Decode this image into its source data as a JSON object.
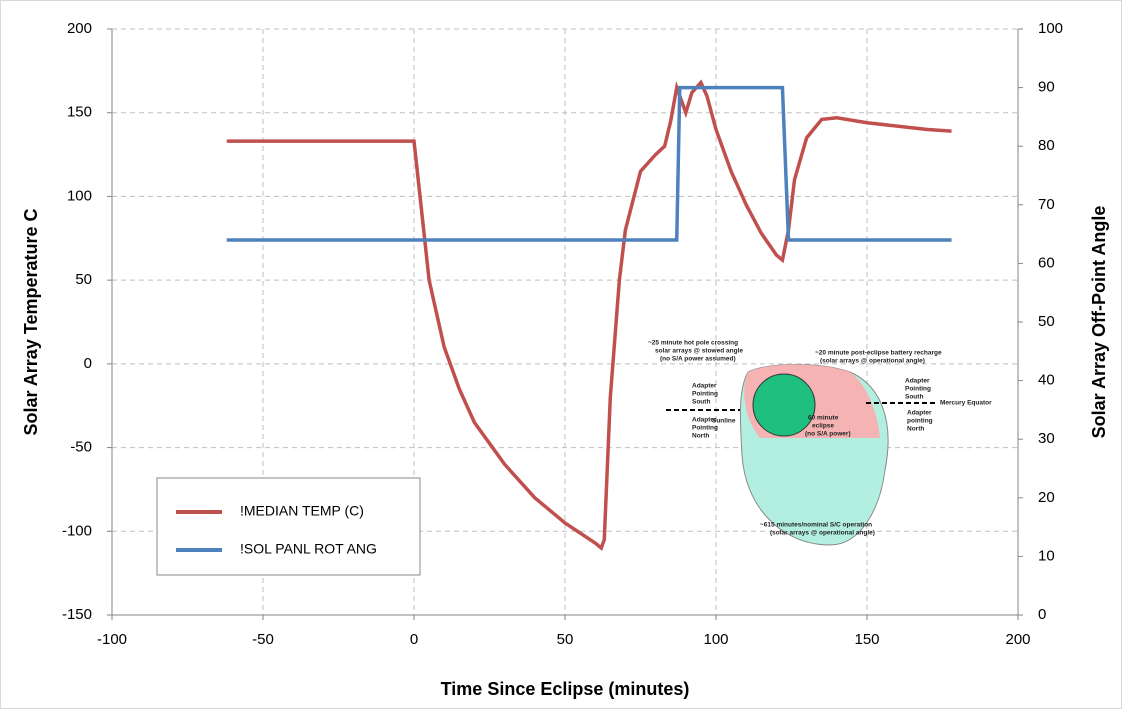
{
  "chart_data": {
    "type": "line",
    "xlabel": "Time Since Eclipse (minutes)",
    "ylabel": "Solar Array Temperature  C",
    "y2label": "Solar Array Off-Point Angle",
    "xlim": [
      -100,
      200
    ],
    "xticks": [
      -100,
      -50,
      0,
      50,
      100,
      150,
      200
    ],
    "ylim": [
      -150,
      200
    ],
    "yticks": [
      -150,
      -100,
      -50,
      0,
      50,
      100,
      150,
      200
    ],
    "y2lim": [
      0,
      100
    ],
    "y2ticks": [
      0,
      10,
      20,
      30,
      40,
      50,
      60,
      70,
      80,
      90,
      100
    ],
    "grid": true,
    "legend": "lower left",
    "series": [
      {
        "name": "!MEDIAN TEMP (C)",
        "color": "#c0504d",
        "x": [
          -62,
          0,
          2,
          5,
          10,
          15,
          20,
          30,
          40,
          50,
          60,
          62,
          63,
          65,
          68,
          70,
          75,
          80,
          83,
          85,
          87,
          88,
          90,
          92,
          95,
          97,
          100,
          105,
          110,
          115,
          120,
          122,
          124,
          126,
          130,
          135,
          140,
          150,
          160,
          170,
          178
        ],
        "values": [
          133,
          133,
          100,
          50,
          10,
          -15,
          -35,
          -60,
          -80,
          -95,
          -107,
          -110,
          -105,
          -20,
          50,
          80,
          115,
          125,
          130,
          145,
          165,
          160,
          150,
          162,
          168,
          160,
          140,
          115,
          95,
          78,
          65,
          62,
          80,
          110,
          135,
          146,
          147,
          144,
          142,
          140,
          139
        ]
      },
      {
        "name": "!SOL PANL ROT ANG",
        "color": "#4f81bd",
        "axis": "y2",
        "x": [
          -62,
          87,
          88,
          122,
          124,
          178
        ],
        "values": [
          64,
          64,
          90,
          90,
          64,
          64
        ]
      }
    ],
    "annotations": [
      "~25 minute hot pole crossing",
      "solar arrays @ stowed angle",
      "(no S/A power assumed)",
      "~20 minute post-eclipse battery recharge",
      "(solar arrays @ operational angle)",
      "Adapter",
      "Pointing",
      "South",
      "Adapter",
      "Pointing",
      "North",
      "Sunline",
      "60 minute",
      "eclipse",
      "(no S/A power)",
      "Adapter",
      "Pointing",
      "South",
      "Mercury Equator",
      "Adapter",
      "pointing",
      "North",
      "~615 minutes/nominal S/C operation",
      "(solar arrays @ operational angle)"
    ]
  }
}
